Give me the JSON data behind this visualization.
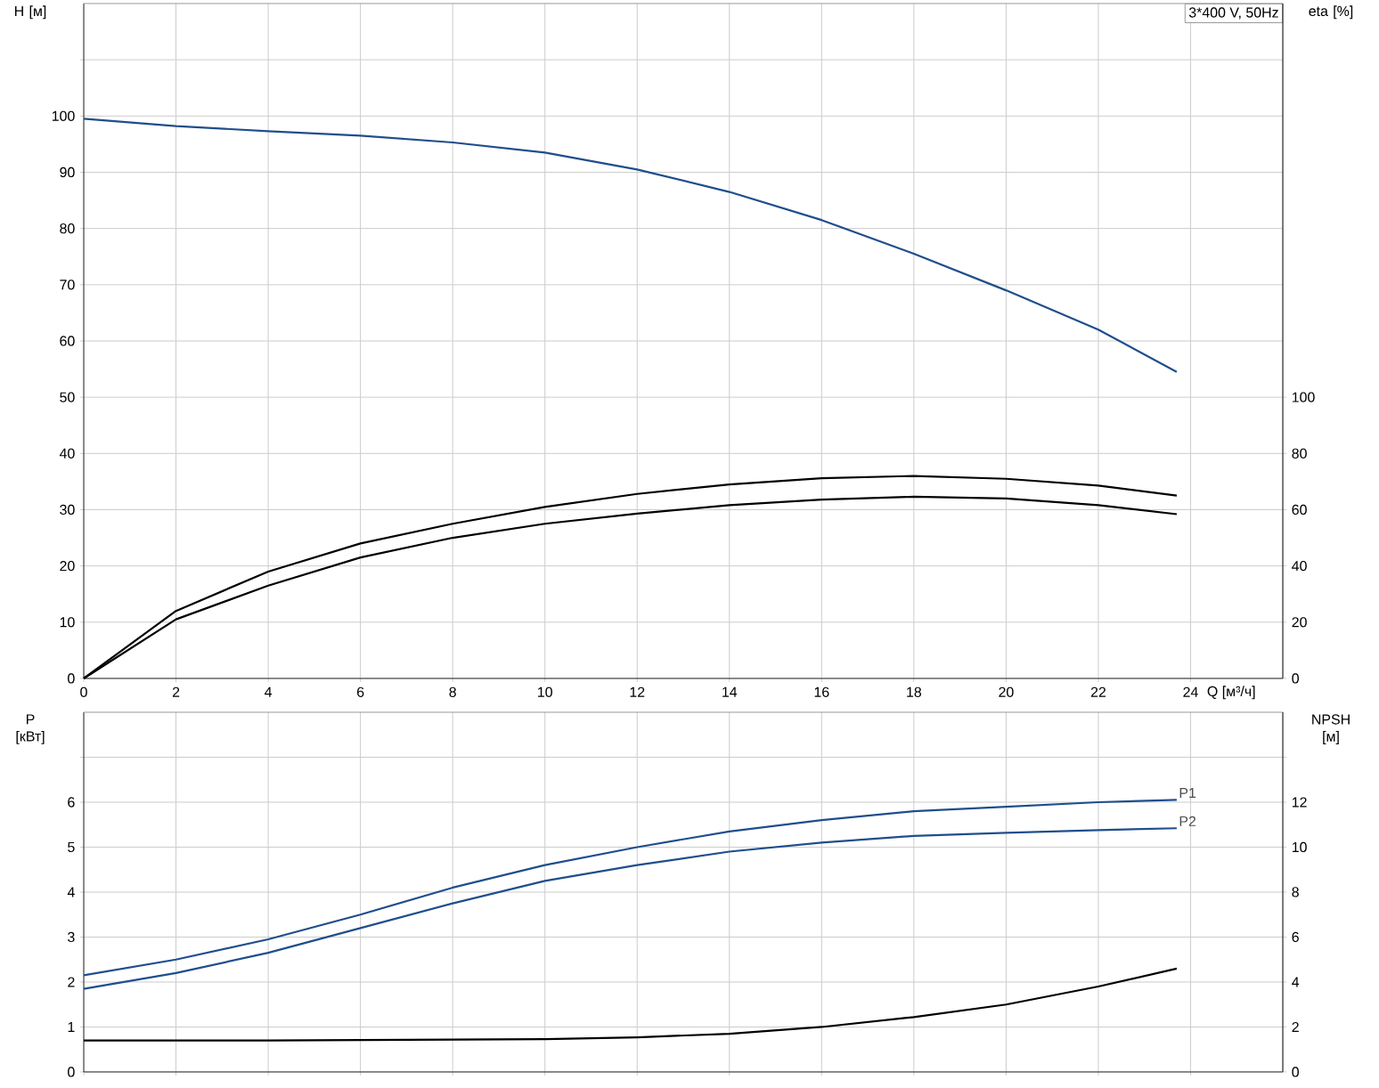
{
  "chart_data": [
    {
      "type": "line",
      "title": "3*400 V, 50Hz",
      "xlabel": "Q [м³/ч]",
      "ylabel": "H [м]",
      "y2label": "eta [%]",
      "x": [
        0,
        2,
        4,
        6,
        8,
        10,
        12,
        14,
        16,
        18,
        20,
        22,
        23.7
      ],
      "series": [
        {
          "color": "#1f4e8c",
          "values": [
            99.5,
            98.2,
            97.3,
            96.5,
            95.3,
            93.5,
            90.5,
            86.5,
            81.5,
            75.5,
            69,
            62,
            54.5
          ]
        },
        {
          "color": "#000000",
          "axis": "y2",
          "values": [
            0,
            24,
            38,
            48,
            55,
            61,
            65.6,
            69,
            71.2,
            72,
            71,
            68.6,
            65
          ]
        },
        {
          "color": "#000000",
          "axis": "y2",
          "values": [
            0,
            21,
            33,
            43,
            50,
            55,
            58.6,
            61.6,
            63.6,
            64.6,
            64,
            61.6,
            58.4
          ]
        }
      ],
      "xlim": [
        0,
        26
      ],
      "xticks": [
        0,
        2,
        4,
        6,
        8,
        10,
        12,
        14,
        16,
        18,
        20,
        22,
        24
      ],
      "ylim": [
        0,
        120
      ],
      "yticks": [
        0,
        10,
        20,
        30,
        40,
        50,
        60,
        70,
        80,
        90,
        100,
        {
          "value": 110,
          "label": null
        }
      ],
      "y2lim": [
        0,
        240
      ],
      "y2ticks": [
        0,
        20,
        40,
        60,
        80,
        100
      ],
      "grid": true
    },
    {
      "type": "line",
      "ylabel": "P [кВт]",
      "y2label": "NPSH [м]",
      "x": [
        0,
        2,
        4,
        6,
        8,
        10,
        12,
        14,
        16,
        18,
        20,
        22,
        23.7
      ],
      "series": [
        {
          "name": "P1",
          "color": "#1f4e8c",
          "values": [
            2.15,
            2.5,
            2.95,
            3.5,
            4.1,
            4.6,
            5.0,
            5.35,
            5.6,
            5.8,
            5.9,
            6.0,
            6.05
          ]
        },
        {
          "name": "P2",
          "color": "#1f4e8c",
          "values": [
            1.85,
            2.2,
            2.65,
            3.2,
            3.75,
            4.25,
            4.6,
            4.9,
            5.1,
            5.25,
            5.32,
            5.38,
            5.42
          ]
        },
        {
          "color": "#000000",
          "axis": "y2",
          "values": [
            1.4,
            1.4,
            1.4,
            1.42,
            1.44,
            1.46,
            1.54,
            1.7,
            2.0,
            2.44,
            3.0,
            3.8,
            4.6
          ]
        }
      ],
      "xlim": [
        0,
        26
      ],
      "xticks": [
        0,
        2,
        4,
        6,
        8,
        10,
        12,
        14,
        16,
        18,
        20,
        22,
        24
      ],
      "ylim": [
        0,
        8
      ],
      "yticks": [
        0,
        1,
        2,
        3,
        4,
        5,
        6,
        {
          "value": 7,
          "label": null
        }
      ],
      "y2lim": [
        0,
        16
      ],
      "y2ticks": [
        0,
        2,
        4,
        6,
        8,
        10,
        12,
        {
          "value": 14,
          "label": null
        }
      ],
      "grid": true,
      "tick_labels": "y"
    }
  ]
}
